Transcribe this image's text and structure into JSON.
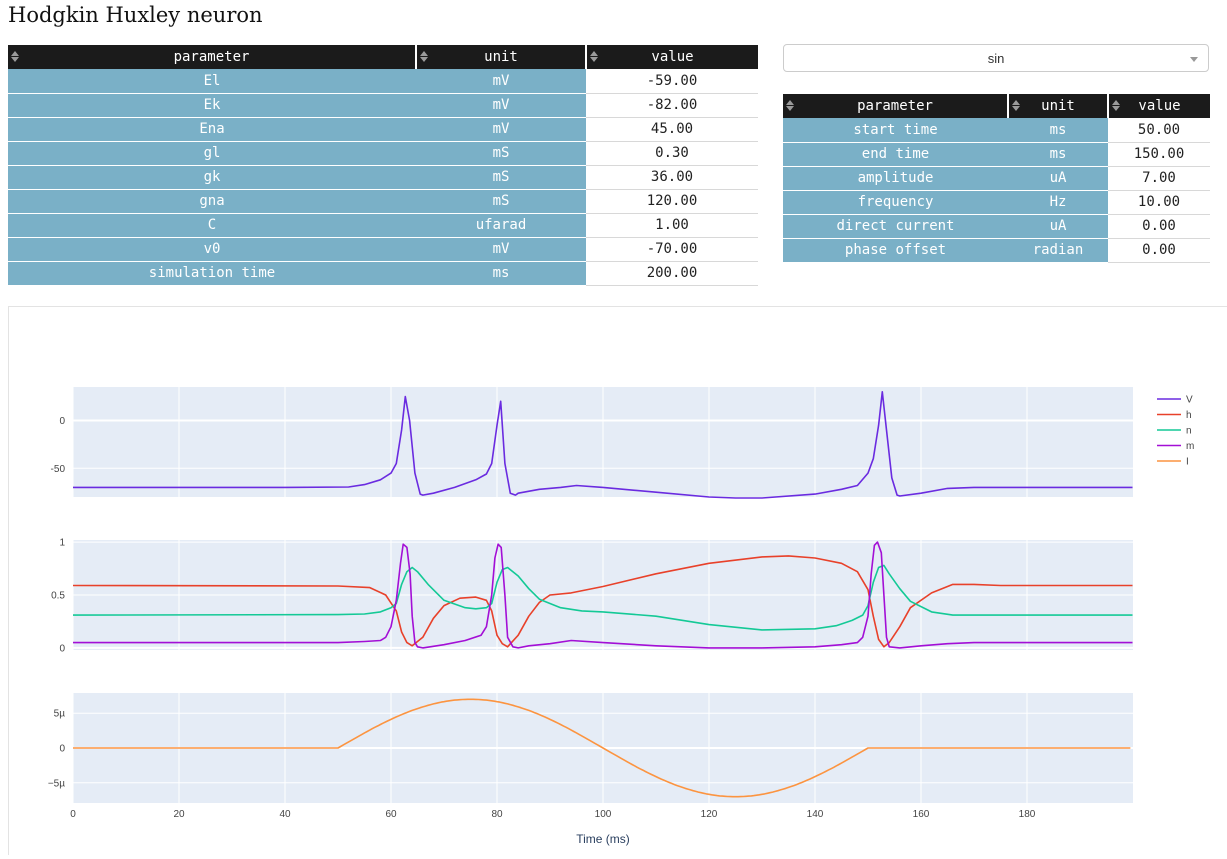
{
  "page": {
    "title": "Hodgkin Huxley neuron"
  },
  "neuron_table": {
    "columns": [
      "parameter",
      "unit",
      "value"
    ],
    "rows": [
      [
        "El",
        "mV",
        "-59.00"
      ],
      [
        "Ek",
        "mV",
        "-82.00"
      ],
      [
        "Ena",
        "mV",
        "45.00"
      ],
      [
        "gl",
        "mS",
        "0.30"
      ],
      [
        "gk",
        "mS",
        "36.00"
      ],
      [
        "gna",
        "mS",
        "120.00"
      ],
      [
        "C",
        "ufarad",
        "1.00"
      ],
      [
        "v0",
        "mV",
        "-70.00"
      ],
      [
        "simulation time",
        "ms",
        "200.00"
      ]
    ]
  },
  "current_selector": {
    "value": "sin"
  },
  "current_table": {
    "columns": [
      "parameter",
      "unit",
      "value"
    ],
    "rows": [
      [
        "start time",
        "ms",
        "50.00"
      ],
      [
        "end time",
        "ms",
        "150.00"
      ],
      [
        "amplitude",
        "uA",
        "7.00"
      ],
      [
        "frequency",
        "Hz",
        "10.00"
      ],
      [
        "direct current",
        "uA",
        "0.00"
      ],
      [
        "phase offset",
        "radian",
        "0.00"
      ]
    ]
  },
  "colors": {
    "V": "#6a2be0",
    "h": "#e8412a",
    "n": "#14c996",
    "m": "#a30fd6",
    "I": "#fc9440",
    "plot_bg": "#e5ecf6",
    "header_bg": "#1b1b1b",
    "label_bg": "#7ab0c7"
  },
  "chart_data": {
    "type": "line",
    "xlabel": "Time (ms)",
    "xlim": [
      0,
      200
    ],
    "x_ticks": [
      0,
      20,
      40,
      60,
      80,
      100,
      120,
      140,
      160,
      180
    ],
    "legend": {
      "placement": "top-right",
      "entries": [
        "V",
        "h",
        "n",
        "m",
        "I"
      ]
    },
    "subplots": [
      {
        "id": "voltage",
        "ylim": [
          -80,
          35
        ],
        "y_ticks": [
          {
            "v": 0,
            "label": "0"
          },
          {
            "v": -50,
            "label": "-50"
          }
        ],
        "series": [
          {
            "name": "V",
            "x": [
              0,
              20,
              40,
              52,
              55,
              58,
              60,
              61,
              62,
              62.7,
              63.5,
              64.5,
              65.5,
              66,
              68,
              72,
              76,
              78,
              79,
              80,
              80.7,
              81.5,
              82.5,
              83.5,
              84,
              88,
              92,
              95,
              100,
              110,
              120,
              125,
              130,
              140,
              145,
              148,
              150,
              151,
              152,
              152.7,
              153.5,
              154.5,
              155.5,
              156,
              160,
              165,
              170,
              180,
              190,
              199.9
            ],
            "y": [
              -70,
              -70,
              -70,
              -69.5,
              -67,
              -62,
              -55,
              -45,
              -10,
              25,
              0,
              -55,
              -77,
              -78,
              -76,
              -70,
              -62,
              -56,
              -45,
              -5,
              20,
              -45,
              -76,
              -78,
              -76,
              -72,
              -70,
              -68,
              -70,
              -75,
              -80,
              -81,
              -81,
              -77,
              -72,
              -68,
              -55,
              -40,
              -5,
              30,
              -10,
              -60,
              -78,
              -79,
              -76,
              -71,
              -70,
              -70,
              -70,
              -70
            ]
          }
        ]
      },
      {
        "id": "gating",
        "ylim": [
          -0.02,
          1.02
        ],
        "y_ticks": [
          {
            "v": 1,
            "label": "1"
          },
          {
            "v": 0.5,
            "label": "0.5"
          },
          {
            "v": 0,
            "label": "0"
          }
        ],
        "series": [
          {
            "name": "h",
            "x": [
              0,
              50,
              56,
              59,
              61,
              62,
              63,
              64,
              66,
              68,
              70,
              73,
              76,
              78,
              79,
              80,
              81,
              82,
              84,
              86,
              88,
              90,
              94,
              100,
              110,
              120,
              130,
              135,
              140,
              145,
              148,
              150,
              151,
              152,
              153,
              154,
              156,
              158,
              162,
              166,
              170,
              175,
              180,
              190,
              199.9
            ],
            "y": [
              0.59,
              0.585,
              0.57,
              0.5,
              0.35,
              0.15,
              0.05,
              0.02,
              0.1,
              0.28,
              0.4,
              0.47,
              0.48,
              0.45,
              0.35,
              0.12,
              0.04,
              0.01,
              0.12,
              0.3,
              0.43,
              0.5,
              0.52,
              0.58,
              0.7,
              0.8,
              0.86,
              0.87,
              0.85,
              0.8,
              0.72,
              0.55,
              0.3,
              0.08,
              0.01,
              0.05,
              0.2,
              0.38,
              0.52,
              0.6,
              0.6,
              0.59,
              0.59,
              0.59,
              0.59
            ]
          },
          {
            "name": "n",
            "x": [
              0,
              50,
              55,
              58,
              60,
              61,
              62,
              63,
              64,
              65,
              67,
              70,
              74,
              76,
              78,
              79,
              80,
              81,
              82,
              84,
              86,
              88,
              92,
              96,
              100,
              110,
              120,
              130,
              140,
              144,
              147,
              149,
              150,
              151,
              152,
              153,
              154,
              156,
              158,
              162,
              166,
              170,
              180,
              190,
              199.9
            ],
            "y": [
              0.31,
              0.315,
              0.32,
              0.34,
              0.38,
              0.42,
              0.6,
              0.72,
              0.76,
              0.72,
              0.6,
              0.45,
              0.38,
              0.37,
              0.38,
              0.42,
              0.62,
              0.74,
              0.76,
              0.68,
              0.56,
              0.46,
              0.38,
              0.35,
              0.34,
              0.3,
              0.22,
              0.17,
              0.18,
              0.21,
              0.26,
              0.31,
              0.4,
              0.62,
              0.76,
              0.78,
              0.7,
              0.56,
              0.44,
              0.34,
              0.31,
              0.31,
              0.31,
              0.31,
              0.31
            ]
          },
          {
            "name": "m",
            "x": [
              0,
              50,
              55,
              58,
              59,
              60,
              61,
              61.8,
              62.3,
              63,
              63.6,
              64,
              64.5,
              65,
              66,
              70,
              74,
              77,
              78,
              79,
              79.6,
              80.2,
              80.8,
              81.5,
              82,
              83,
              84,
              86,
              90,
              94,
              100,
              110,
              120,
              130,
              140,
              145,
              148,
              149,
              150,
              150.6,
              151.2,
              151.8,
              152.5,
              153,
              153.5,
              154,
              156,
              160,
              165,
              170,
              180,
              190,
              199.9
            ],
            "y": [
              0.05,
              0.05,
              0.06,
              0.07,
              0.1,
              0.2,
              0.45,
              0.8,
              0.98,
              0.95,
              0.7,
              0.3,
              0.05,
              0.01,
              0,
              0.03,
              0.07,
              0.12,
              0.2,
              0.5,
              0.85,
              0.98,
              0.95,
              0.5,
              0.1,
              0.01,
              0,
              0.02,
              0.04,
              0.07,
              0.05,
              0.02,
              0,
              0,
              0.01,
              0.03,
              0.05,
              0.1,
              0.3,
              0.7,
              0.97,
              1,
              0.9,
              0.5,
              0.1,
              0.01,
              0,
              0.02,
              0.04,
              0.05,
              0.05,
              0.05,
              0.05
            ]
          }
        ]
      },
      {
        "id": "current",
        "ylim": [
          -7.9,
          7.9
        ],
        "y_ticks": [
          {
            "v": 5,
            "label": "5µ"
          },
          {
            "v": 0,
            "label": "0"
          },
          {
            "v": -5,
            "label": "−5µ"
          }
        ],
        "series": [
          {
            "name": "I",
            "function": "sin",
            "start": 50,
            "end": 150,
            "amplitude": 7,
            "frequency": 10,
            "offset": 0
          }
        ]
      }
    ]
  }
}
